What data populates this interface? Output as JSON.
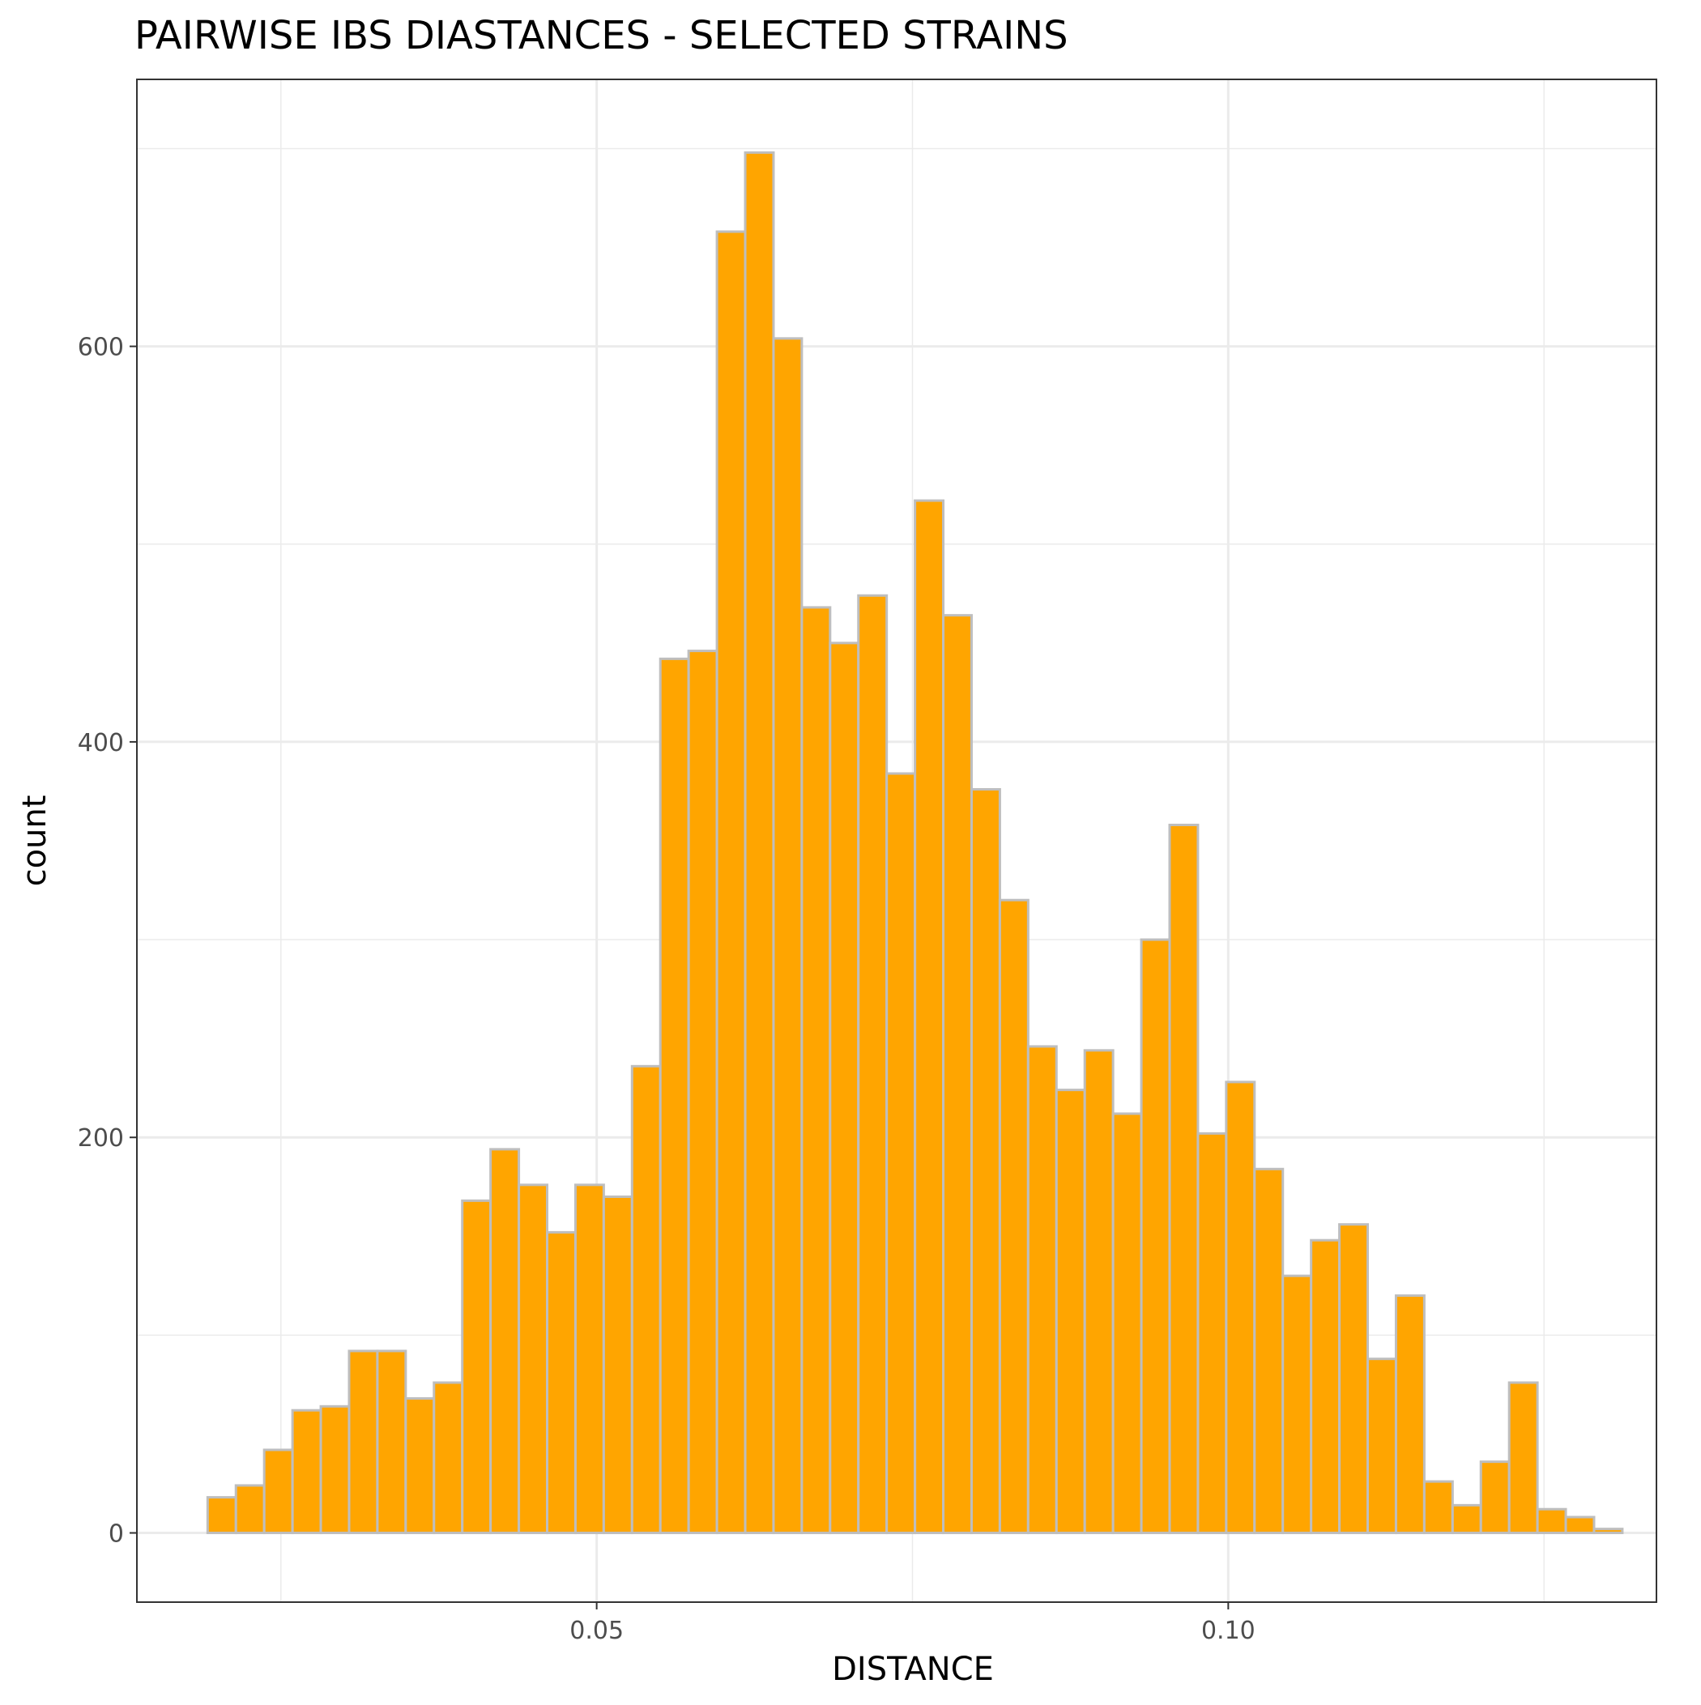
{
  "chart_data": {
    "type": "bar",
    "title": "PAIRWISE IBS DIASTANCES - SELECTED STRAINS",
    "xlabel": "DISTANCE",
    "ylabel": "count",
    "xlim": [
      0.0136,
      0.1339
    ],
    "ylim": [
      -35,
      735
    ],
    "x_ticks": [
      {
        "value": 0.05,
        "label": "0.05"
      },
      {
        "value": 0.1,
        "label": "0.10"
      }
    ],
    "x_minor_ticks": [
      0.025,
      0.075,
      0.125
    ],
    "y_ticks": [
      {
        "value": 0,
        "label": "0"
      },
      {
        "value": 200,
        "label": "200"
      },
      {
        "value": 400,
        "label": "400"
      },
      {
        "value": 600,
        "label": "600"
      }
    ],
    "y_minor_ticks": [
      100,
      300,
      500,
      700
    ],
    "grid": true,
    "bin_width": 0.00224,
    "bin_start": 0.0192,
    "values": [
      18,
      24,
      42,
      62,
      64,
      92,
      92,
      68,
      76,
      168,
      194,
      176,
      152,
      176,
      170,
      236,
      442,
      446,
      658,
      698,
      604,
      468,
      450,
      474,
      384,
      522,
      464,
      376,
      320,
      246,
      224,
      244,
      212,
      300,
      358,
      202,
      228,
      184,
      130,
      148,
      156,
      88,
      120,
      26,
      14,
      36,
      76,
      12,
      8,
      2
    ],
    "colors": {
      "fill": "#ffa500",
      "outline": "#bebebe",
      "panel_border": "#333333",
      "grid": "#ebebeb"
    }
  }
}
